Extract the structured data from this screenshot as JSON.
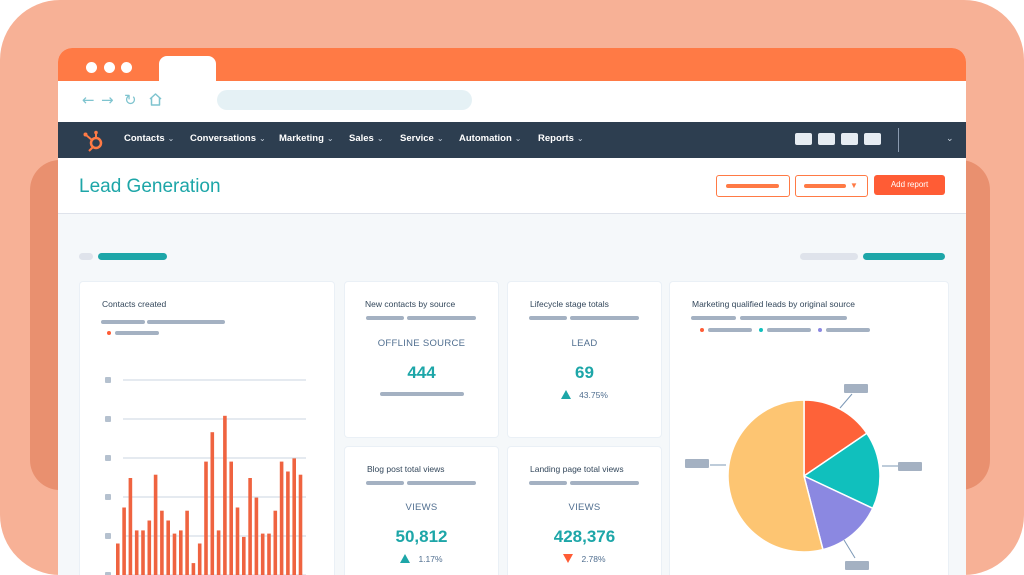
{
  "colors": {
    "accent": "#1da6a8",
    "brand_orange": "#ff7a45",
    "bar_orange": "#ef6340",
    "nav_dark": "#2d3e50",
    "pie_orange": "#fe6239",
    "pie_teal": "#10c0bd",
    "pie_purple": "#8b88e1",
    "pie_yellow": "#fdc572"
  },
  "browser": {
    "icons": [
      "back-arrow-icon",
      "forward-arrow-icon",
      "reload-icon",
      "home-icon"
    ]
  },
  "nav": {
    "items": [
      {
        "label": "Contacts"
      },
      {
        "label": "Conversations"
      },
      {
        "label": "Marketing"
      },
      {
        "label": "Sales"
      },
      {
        "label": "Service"
      },
      {
        "label": "Automation"
      },
      {
        "label": "Reports"
      }
    ],
    "chevron": "⌄"
  },
  "header": {
    "title": "Lead Generation",
    "add_report_label": "Add report"
  },
  "cards": {
    "contacts_created": {
      "title": "Contacts created",
      "chart_data": {
        "type": "bar",
        "values": [
          13,
          24,
          33,
          17,
          17,
          20,
          34,
          23,
          20,
          16,
          17,
          23,
          7,
          13,
          38,
          47,
          17,
          52,
          38,
          24,
          15,
          33,
          27,
          16,
          16,
          23,
          38,
          35,
          39,
          34
        ],
        "ylim": [
          0,
          55
        ]
      }
    },
    "new_contacts": {
      "title": "New contacts by source",
      "label": "OFFLINE SOURCE",
      "value": "444"
    },
    "lifecycle": {
      "title": "Lifecycle stage totals",
      "label": "LEAD",
      "value": "69",
      "change": "43.75%",
      "direction": "up"
    },
    "mql": {
      "title": "Marketing qualified leads by original source",
      "chart_data": {
        "type": "pie",
        "values": [
          15.5,
          16.5,
          14,
          54
        ],
        "colors": [
          "#fe6239",
          "#10c0bd",
          "#8b88e1",
          "#fdc572"
        ]
      }
    },
    "blog": {
      "title": "Blog post total views",
      "label": "VIEWS",
      "value": "50,812",
      "change": "1.17%",
      "direction": "up"
    },
    "landing": {
      "title": "Landing page total views",
      "label": "VIEWS",
      "value": "428,376",
      "change": "2.78%",
      "direction": "down"
    }
  }
}
